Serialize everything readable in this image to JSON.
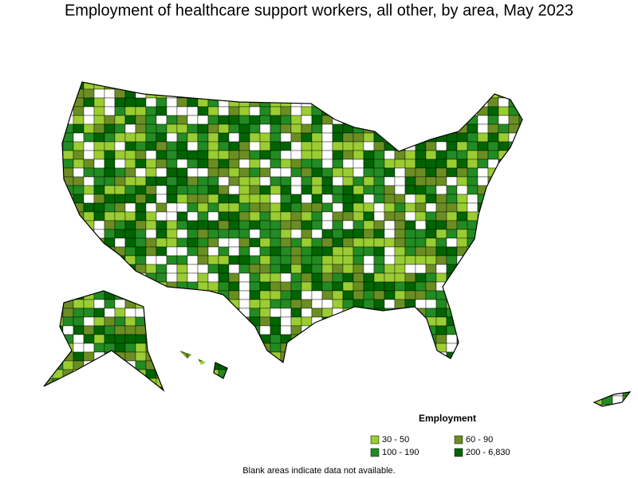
{
  "title": "Employment of healthcare support workers, all other, by area, May 2023",
  "legend": {
    "title": "Employment",
    "items": [
      {
        "label": "30 - 50",
        "color": "#9acd32"
      },
      {
        "label": "60 - 90",
        "color": "#6b8e23"
      },
      {
        "label": "100 - 190",
        "color": "#228b22"
      },
      {
        "label": "200 - 6,830",
        "color": "#006400"
      }
    ]
  },
  "note": "Blank areas indicate data not available."
}
